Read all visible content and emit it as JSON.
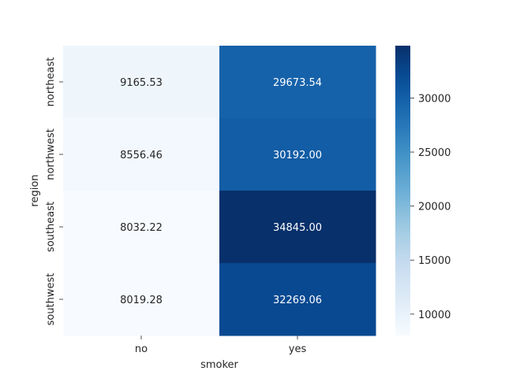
{
  "chart_data": {
    "type": "heatmap",
    "title": "",
    "xlabel": "smoker",
    "ylabel": "region",
    "x_categories": [
      "no",
      "yes"
    ],
    "y_categories": [
      "northeast",
      "northwest",
      "southeast",
      "southwest"
    ],
    "values": [
      [
        9165.53,
        29673.54
      ],
      [
        8556.46,
        30192.0
      ],
      [
        8032.22,
        34845.0
      ],
      [
        8019.28,
        32269.06
      ]
    ],
    "value_format": "0.00",
    "colormap": "Blues",
    "colorbar": {
      "range": [
        8019.28,
        34845.0
      ],
      "ticks": [
        10000,
        15000,
        20000,
        25000,
        30000
      ],
      "tick_labels": [
        "10000",
        "15000",
        "20000",
        "25000",
        "30000"
      ]
    }
  }
}
